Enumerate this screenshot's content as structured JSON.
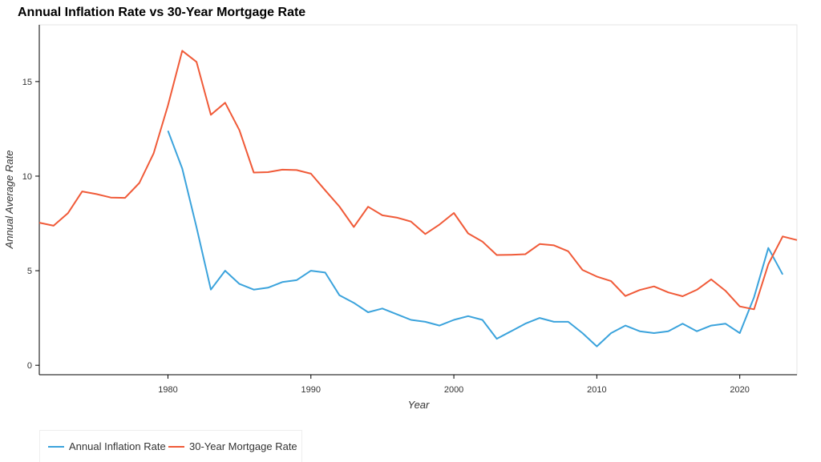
{
  "chart_data": {
    "type": "line",
    "title": "Annual Inflation Rate vs 30-Year Mortgage Rate",
    "xlabel": "Year",
    "ylabel": "Annual Average Rate",
    "xlim": [
      1971,
      2024
    ],
    "ylim": [
      -0.5,
      18
    ],
    "x_ticks": [
      1980,
      1990,
      2000,
      2010,
      2020
    ],
    "y_ticks": [
      0,
      5,
      10,
      15
    ],
    "grid": false,
    "legend_position": "bottom-left",
    "series": [
      {
        "name": "Annual Inflation Rate",
        "color": "#3ba3dc",
        "x": [
          1980,
          1981,
          1982,
          1983,
          1984,
          1985,
          1986,
          1987,
          1988,
          1989,
          1990,
          1991,
          1992,
          1993,
          1994,
          1995,
          1996,
          1997,
          1998,
          1999,
          2000,
          2001,
          2002,
          2003,
          2004,
          2005,
          2006,
          2007,
          2008,
          2009,
          2010,
          2011,
          2012,
          2013,
          2014,
          2015,
          2016,
          2017,
          2018,
          2019,
          2020,
          2021,
          2022,
          2023
        ],
        "values": [
          12.4,
          10.4,
          7.3,
          4.0,
          5.0,
          4.3,
          4.0,
          4.1,
          4.4,
          4.5,
          5.0,
          4.9,
          3.7,
          3.3,
          2.8,
          3.0,
          2.7,
          2.4,
          2.3,
          2.1,
          2.4,
          2.6,
          2.4,
          1.4,
          1.8,
          2.2,
          2.5,
          2.3,
          2.3,
          1.7,
          1.0,
          1.7,
          2.1,
          1.8,
          1.7,
          1.8,
          2.2,
          1.8,
          2.1,
          2.2,
          1.7,
          3.6,
          6.2,
          4.8
        ]
      },
      {
        "name": "30-Year Mortgage Rate",
        "color": "#f05a38",
        "x": [
          1971,
          1972,
          1973,
          1974,
          1975,
          1976,
          1977,
          1978,
          1979,
          1980,
          1981,
          1982,
          1983,
          1984,
          1985,
          1986,
          1987,
          1988,
          1989,
          1990,
          1991,
          1992,
          1993,
          1994,
          1995,
          1996,
          1997,
          1998,
          1999,
          2000,
          2001,
          2002,
          2003,
          2004,
          2005,
          2006,
          2007,
          2008,
          2009,
          2010,
          2011,
          2012,
          2013,
          2014,
          2015,
          2016,
          2017,
          2018,
          2019,
          2020,
          2021,
          2022,
          2023,
          2024
        ],
        "values": [
          7.54,
          7.38,
          8.04,
          9.19,
          9.05,
          8.87,
          8.85,
          9.64,
          11.2,
          13.74,
          16.63,
          16.04,
          13.24,
          13.88,
          12.43,
          10.19,
          10.21,
          10.34,
          10.32,
          10.13,
          9.25,
          8.39,
          7.31,
          8.38,
          7.93,
          7.81,
          7.6,
          6.94,
          7.44,
          8.05,
          6.97,
          6.54,
          5.83,
          5.84,
          5.87,
          6.41,
          6.34,
          6.03,
          5.04,
          4.69,
          4.45,
          3.66,
          3.98,
          4.17,
          3.85,
          3.65,
          3.99,
          4.54,
          3.94,
          3.11,
          2.96,
          5.34,
          6.81,
          6.62
        ]
      }
    ]
  }
}
